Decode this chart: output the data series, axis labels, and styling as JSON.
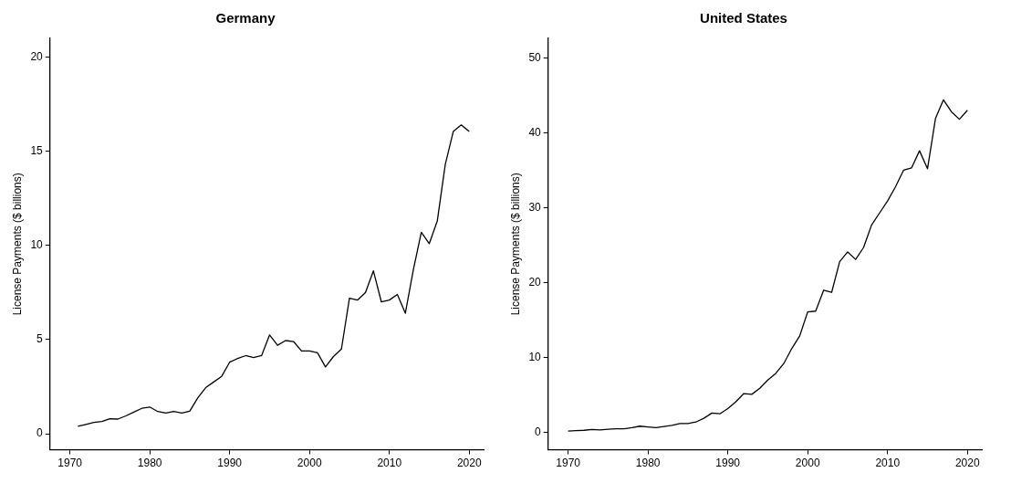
{
  "chart_data": [
    {
      "type": "line",
      "title": "Germany",
      "ylabel": "License Payments ($ billions)",
      "x": [
        1971,
        1972,
        1973,
        1974,
        1975,
        1976,
        1977,
        1978,
        1979,
        1980,
        1981,
        1982,
        1983,
        1984,
        1985,
        1986,
        1987,
        1988,
        1989,
        1990,
        1991,
        1992,
        1993,
        1994,
        1995,
        1996,
        1997,
        1998,
        1999,
        2000,
        2001,
        2002,
        2003,
        2004,
        2005,
        2006,
        2007,
        2008,
        2009,
        2010,
        2011,
        2012,
        2013,
        2014,
        2015,
        2016,
        2017,
        2018,
        2019,
        2020
      ],
      "series": [
        {
          "color": "#000000",
          "values": [
            0.4,
            0.5,
            0.6,
            0.65,
            0.8,
            0.78,
            0.95,
            1.15,
            1.35,
            1.42,
            1.18,
            1.1,
            1.18,
            1.1,
            1.2,
            1.9,
            2.45,
            2.75,
            3.05,
            3.8,
            4.0,
            4.15,
            4.05,
            4.15,
            5.25,
            4.7,
            4.95,
            4.9,
            4.4,
            4.4,
            4.3,
            3.55,
            4.1,
            4.5,
            7.2,
            7.1,
            7.5,
            8.65,
            7.0,
            7.1,
            7.4,
            6.4,
            8.7,
            10.7,
            10.1,
            11.3,
            14.3,
            16.05,
            16.4,
            16.05
          ]
        }
      ],
      "xlim": [
        1967.5,
        2021.8
      ],
      "xticks": [
        1970,
        1980,
        1990,
        2000,
        2010,
        2020
      ],
      "ylim": [
        -0.85,
        21
      ],
      "yticks": [
        0,
        5,
        10,
        15,
        20
      ],
      "grid": false,
      "legend": false,
      "marker": "none",
      "line_style": "solid"
    },
    {
      "type": "line",
      "title": "United States",
      "ylabel": "License Payments ($ billions)",
      "x": [
        1970,
        1971,
        1972,
        1973,
        1974,
        1975,
        1976,
        1977,
        1978,
        1979,
        1980,
        1981,
        1982,
        1983,
        1984,
        1985,
        1986,
        1987,
        1988,
        1989,
        1990,
        1991,
        1992,
        1993,
        1994,
        1995,
        1996,
        1997,
        1998,
        1999,
        2000,
        2001,
        2002,
        2003,
        2004,
        2005,
        2006,
        2007,
        2008,
        2009,
        2010,
        2011,
        2012,
        2013,
        2014,
        2015,
        2016,
        2017,
        2018,
        2019,
        2020
      ],
      "series": [
        {
          "color": "#000000",
          "values": [
            0.2,
            0.25,
            0.3,
            0.4,
            0.35,
            0.45,
            0.5,
            0.5,
            0.65,
            0.85,
            0.75,
            0.65,
            0.8,
            0.95,
            1.2,
            1.2,
            1.4,
            1.9,
            2.6,
            2.5,
            3.2,
            4.1,
            5.2,
            5.1,
            5.9,
            7.0,
            7.9,
            9.2,
            11.2,
            12.9,
            16.1,
            16.2,
            19.0,
            18.7,
            22.8,
            24.1,
            23.1,
            24.7,
            27.7,
            29.3,
            30.9,
            32.8,
            35.0,
            35.3,
            37.6,
            35.2,
            41.9,
            44.4,
            42.8,
            41.8,
            43.0
          ]
        }
      ],
      "xlim": [
        1967.5,
        2021.8
      ],
      "xticks": [
        1970,
        1980,
        1990,
        2000,
        2010,
        2020
      ],
      "ylim": [
        -2.3,
        52.6
      ],
      "yticks": [
        0,
        10,
        20,
        30,
        40,
        50
      ],
      "grid": false,
      "legend": false,
      "marker": "none",
      "line_style": "solid"
    }
  ]
}
